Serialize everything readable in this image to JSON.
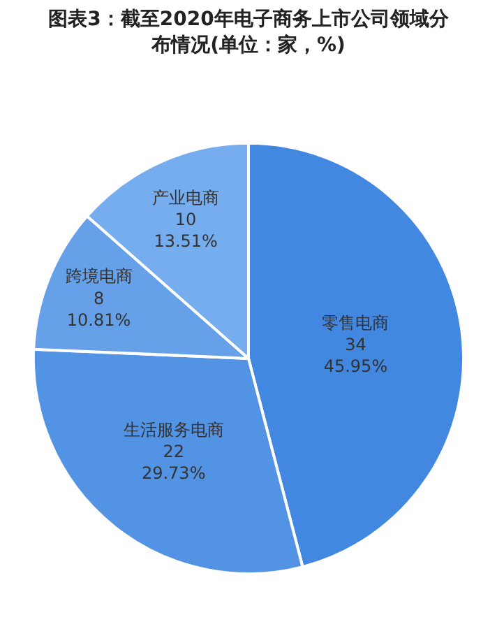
{
  "chart_data": {
    "type": "pie",
    "title": "图表3：截至2020年电子商务上市公司领域分布情况(单位：家，%)",
    "categories": [
      "零售电商",
      "生活服务电商",
      "跨境电商",
      "产业电商"
    ],
    "values": [
      45.95,
      29.73,
      10.81,
      13.51
    ],
    "colors": [
      "#4287e0",
      "#5393e4",
      "#65a0e8",
      "#76adee"
    ],
    "value_labels": [
      "34\n45.95%",
      "22\n29.73%",
      "8\n10.81%",
      "10\n13.51%"
    ],
    "legend": false
  }
}
